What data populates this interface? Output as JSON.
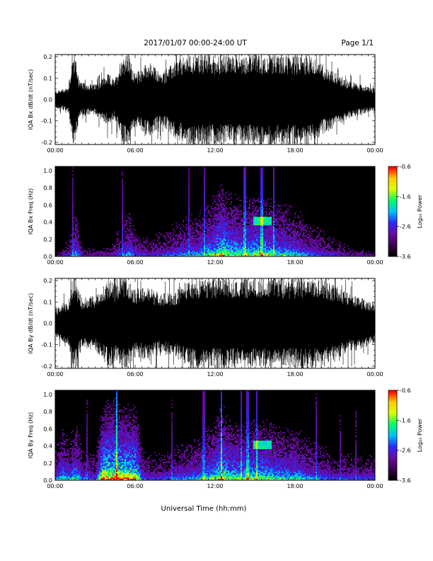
{
  "header": {
    "date_range": "2017/01/07  00:00-24:00 UT",
    "page": "Page 1/1"
  },
  "x_axis_title": "Universal Time (hh:mm)",
  "colors": {
    "trace": "#000000",
    "spectrogram_background": "#000000",
    "colormap": [
      "#000000",
      "#3a0050",
      "#6a0aa0",
      "#2a2aff",
      "#00c0ff",
      "#00ff66",
      "#d8ff00",
      "#ffd000",
      "#ff0000"
    ]
  },
  "chart_data": [
    {
      "type": "line",
      "name": "bx_waveform",
      "ylabel": "IQA Bx dB/dt (nT/sec)",
      "ylim": [
        -0.21,
        0.21
      ],
      "yticks": [
        "-0.2",
        "-0.1",
        "0.0",
        "0.1",
        "0.2"
      ],
      "yticks_values": [
        -0.2,
        -0.1,
        0.0,
        0.1,
        0.2
      ],
      "xticks": [
        "00:00",
        "06:00",
        "12:00",
        "18:00",
        "00:00"
      ],
      "xlim_hours": [
        0,
        24
      ],
      "x": [
        0,
        1,
        1.3,
        1.5,
        1.8,
        2,
        3,
        3.5,
        4,
        4.5,
        5,
        5.3,
        5.5,
        6,
        6.5,
        7,
        8,
        9,
        10,
        11,
        12,
        13,
        14,
        15,
        16,
        17,
        18,
        19,
        20,
        21,
        22,
        23,
        24
      ],
      "envelope": [
        0.04,
        0.06,
        0.21,
        0.21,
        0.09,
        0.08,
        0.07,
        0.1,
        0.12,
        0.09,
        0.21,
        0.21,
        0.21,
        0.12,
        0.15,
        0.18,
        0.12,
        0.18,
        0.21,
        0.21,
        0.21,
        0.21,
        0.21,
        0.21,
        0.21,
        0.21,
        0.21,
        0.21,
        0.17,
        0.13,
        0.09,
        0.07,
        0.05
      ]
    },
    {
      "type": "heatmap",
      "name": "bx_spectrogram",
      "ylabel": "IQA Bx Freq (Hz)",
      "ylim": [
        0,
        1.05
      ],
      "yticks": [
        "0.0",
        "0.2",
        "0.4",
        "0.6",
        "0.8",
        "1.0"
      ],
      "yticks_values": [
        0,
        0.2,
        0.4,
        0.6,
        0.8,
        1.0
      ],
      "xticks": [
        "00:00",
        "06:00",
        "12:00",
        "18:00",
        "00:00"
      ],
      "xlim_hours": [
        0,
        24
      ],
      "colorbar": {
        "label": "Log₁₀ Power",
        "range": [
          -3.6,
          -0.6
        ],
        "ticks": [
          "-0.6",
          "-1.6",
          "-2.6",
          "-3.6"
        ],
        "tick_values": [
          -0.6,
          -1.6,
          -2.6,
          -3.6
        ]
      },
      "activity_hours": [
        0,
        1,
        1.5,
        2,
        3,
        4,
        5,
        5.5,
        6,
        7,
        8,
        9,
        10,
        11,
        12,
        12.5,
        13,
        14,
        15,
        15.5,
        16,
        17,
        18,
        19,
        20,
        21,
        22,
        23,
        24
      ],
      "activity_level": [
        0.15,
        0.25,
        0.45,
        0.2,
        0.2,
        0.2,
        0.35,
        0.45,
        0.3,
        0.25,
        0.3,
        0.35,
        0.4,
        0.45,
        0.6,
        0.75,
        0.6,
        0.55,
        0.6,
        0.6,
        0.55,
        0.5,
        0.45,
        0.35,
        0.3,
        0.25,
        0.2,
        0.2,
        0.15
      ],
      "peak_band_hz": [
        15.5,
        0.4
      ]
    },
    {
      "type": "line",
      "name": "by_waveform",
      "ylabel": "IQA By dB/dt (nT/sec)",
      "ylim": [
        -0.21,
        0.21
      ],
      "yticks": [
        "-0.2",
        "-0.1",
        "0.0",
        "0.1",
        "0.2"
      ],
      "yticks_values": [
        -0.2,
        -0.1,
        0.0,
        0.1,
        0.2
      ],
      "xticks": [
        "00:00",
        "06:00",
        "12:00",
        "18:00",
        "00:00"
      ],
      "xlim_hours": [
        0,
        24
      ],
      "x": [
        0,
        1,
        1.3,
        1.5,
        1.8,
        2,
        3,
        3.5,
        4,
        4.5,
        5,
        5.5,
        6,
        7,
        8,
        9,
        10,
        11,
        12,
        13,
        14,
        15,
        16,
        17,
        18,
        19,
        20,
        21,
        22,
        23,
        24
      ],
      "envelope": [
        0.07,
        0.1,
        0.21,
        0.21,
        0.15,
        0.12,
        0.13,
        0.16,
        0.21,
        0.18,
        0.21,
        0.21,
        0.16,
        0.17,
        0.14,
        0.15,
        0.21,
        0.21,
        0.21,
        0.21,
        0.21,
        0.21,
        0.21,
        0.21,
        0.21,
        0.21,
        0.21,
        0.18,
        0.14,
        0.12,
        0.1
      ]
    },
    {
      "type": "heatmap",
      "name": "by_spectrogram",
      "ylabel": "IQA By Freq (Hz)",
      "ylim": [
        0,
        1.05
      ],
      "yticks": [
        "0.0",
        "0.2",
        "0.4",
        "0.6",
        "0.8",
        "1.0"
      ],
      "yticks_values": [
        0,
        0.2,
        0.4,
        0.6,
        0.8,
        1.0
      ],
      "xticks": [
        "00:00",
        "06:00",
        "12:00",
        "18:00",
        "00:00"
      ],
      "xlim_hours": [
        0,
        24
      ],
      "colorbar": {
        "label": "Log₁₀ Power",
        "range": [
          -3.6,
          -0.6
        ],
        "ticks": [
          "-0.6",
          "-1.6",
          "-2.6",
          "-3.6"
        ],
        "tick_values": [
          -0.6,
          -1.6,
          -2.6,
          -3.6
        ]
      },
      "activity_hours": [
        0,
        0.5,
        1,
        1.5,
        2,
        3,
        3.5,
        4,
        4.5,
        5,
        5.5,
        6,
        6.5,
        7,
        8,
        9,
        10,
        11,
        12,
        12.5,
        13,
        14,
        15,
        15.5,
        16,
        17,
        18,
        19,
        20,
        21,
        22,
        23,
        24
      ],
      "activity_level": [
        0.35,
        0.5,
        0.4,
        0.55,
        0.35,
        0.3,
        0.8,
        0.85,
        0.85,
        0.8,
        0.8,
        0.75,
        0.35,
        0.3,
        0.3,
        0.35,
        0.4,
        0.45,
        0.6,
        0.75,
        0.6,
        0.55,
        0.6,
        0.6,
        0.55,
        0.5,
        0.5,
        0.4,
        0.35,
        0.3,
        0.3,
        0.3,
        0.3
      ],
      "peak_band_hz": [
        15.5,
        0.4
      ]
    }
  ]
}
